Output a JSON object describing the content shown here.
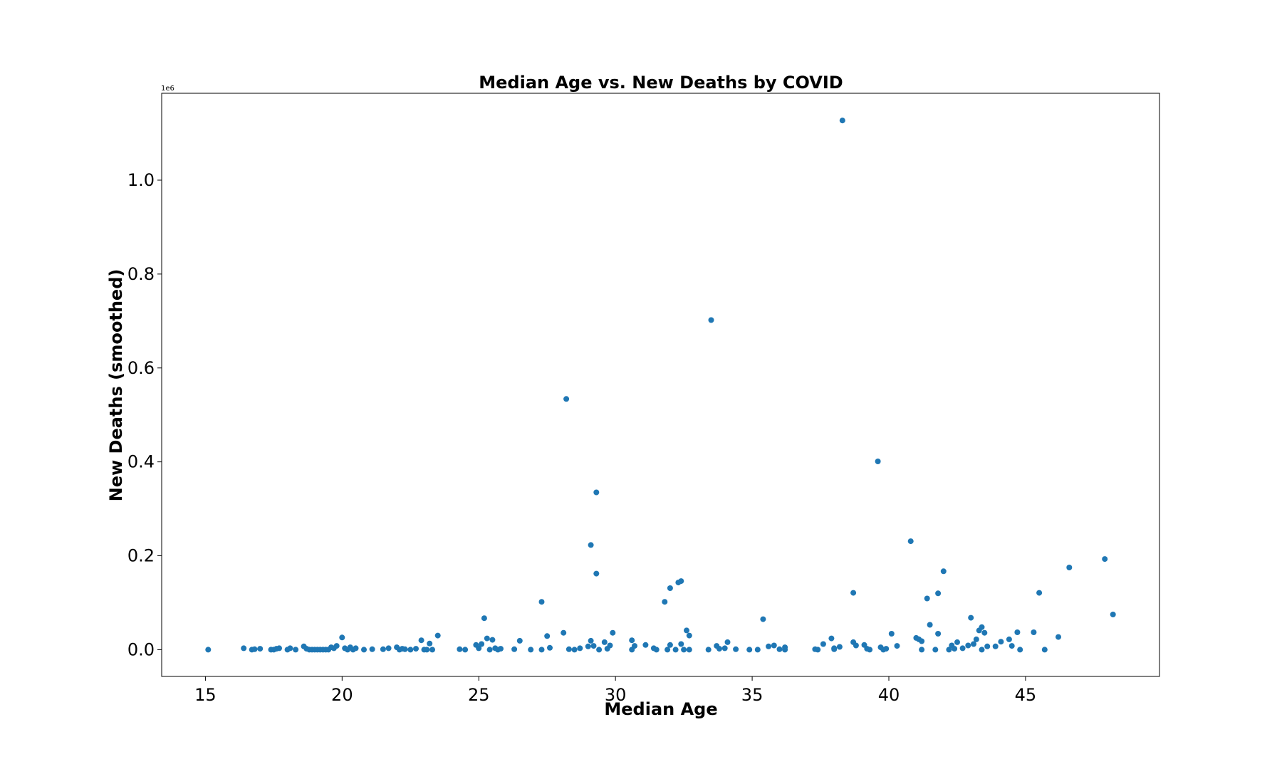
{
  "chart_data": {
    "type": "scatter",
    "title": "Median Age vs. New Deaths by COVID",
    "xlabel": "Median Age",
    "ylabel": "New Deaths (smoothed)",
    "y_offset_label": "1e6",
    "y_multiplier": 1000000,
    "xlim": [
      13.4,
      49.9
    ],
    "ylim": [
      -57000,
      1185000
    ],
    "x_ticks": [
      15,
      20,
      25,
      30,
      35,
      40,
      45
    ],
    "y_ticks": [
      0.0,
      0.2,
      0.4,
      0.6,
      0.8,
      1.0
    ],
    "x_tick_labels": [
      "15",
      "20",
      "25",
      "30",
      "35",
      "40",
      "45"
    ],
    "y_tick_labels": [
      "0.0",
      "0.2",
      "0.4",
      "0.6",
      "0.8",
      "1.0"
    ],
    "grid": false,
    "marker_color": "#1f77b4",
    "points": [
      [
        15.1,
        0
      ],
      [
        16.4,
        3000
      ],
      [
        16.7,
        0
      ],
      [
        16.8,
        1000
      ],
      [
        17.0,
        2000
      ],
      [
        17.4,
        0
      ],
      [
        17.5,
        0
      ],
      [
        17.6,
        2000
      ],
      [
        17.7,
        3000
      ],
      [
        18.0,
        0
      ],
      [
        18.1,
        3000
      ],
      [
        18.3,
        0
      ],
      [
        18.6,
        7000
      ],
      [
        18.7,
        2000
      ],
      [
        18.8,
        0
      ],
      [
        18.9,
        0
      ],
      [
        19.0,
        0
      ],
      [
        19.1,
        0
      ],
      [
        19.2,
        0
      ],
      [
        19.3,
        0
      ],
      [
        19.4,
        0
      ],
      [
        19.5,
        0
      ],
      [
        19.6,
        5000
      ],
      [
        19.7,
        3000
      ],
      [
        19.8,
        8000
      ],
      [
        20.0,
        26000
      ],
      [
        20.1,
        3000
      ],
      [
        20.2,
        0
      ],
      [
        20.3,
        5000
      ],
      [
        20.4,
        0
      ],
      [
        20.5,
        3000
      ],
      [
        20.8,
        0
      ],
      [
        21.1,
        1000
      ],
      [
        21.5,
        1000
      ],
      [
        21.7,
        3000
      ],
      [
        22.0,
        5000
      ],
      [
        22.1,
        0
      ],
      [
        22.2,
        2000
      ],
      [
        22.3,
        1000
      ],
      [
        22.5,
        0
      ],
      [
        22.7,
        2000
      ],
      [
        22.9,
        20000
      ],
      [
        23.0,
        0
      ],
      [
        23.1,
        0
      ],
      [
        23.2,
        13000
      ],
      [
        23.3,
        0
      ],
      [
        23.5,
        30000
      ],
      [
        24.3,
        1000
      ],
      [
        24.5,
        0
      ],
      [
        24.9,
        10000
      ],
      [
        25.0,
        3000
      ],
      [
        25.1,
        12000
      ],
      [
        25.2,
        67000
      ],
      [
        25.3,
        24000
      ],
      [
        25.4,
        0
      ],
      [
        25.5,
        21000
      ],
      [
        25.6,
        3000
      ],
      [
        25.7,
        0
      ],
      [
        25.8,
        2000
      ],
      [
        26.3,
        1000
      ],
      [
        26.5,
        19000
      ],
      [
        26.9,
        0
      ],
      [
        27.3,
        102000
      ],
      [
        27.3,
        0
      ],
      [
        27.5,
        29000
      ],
      [
        27.6,
        4000
      ],
      [
        28.1,
        36000
      ],
      [
        28.2,
        534000
      ],
      [
        28.3,
        1000
      ],
      [
        28.5,
        0
      ],
      [
        28.7,
        3000
      ],
      [
        29.0,
        7000
      ],
      [
        29.1,
        223000
      ],
      [
        29.1,
        19000
      ],
      [
        29.2,
        8000
      ],
      [
        29.3,
        335000
      ],
      [
        29.3,
        162000
      ],
      [
        29.4,
        0
      ],
      [
        29.6,
        16000
      ],
      [
        29.7,
        2000
      ],
      [
        29.8,
        9000
      ],
      [
        29.9,
        36000
      ],
      [
        30.6,
        20000
      ],
      [
        30.6,
        0
      ],
      [
        30.7,
        8000
      ],
      [
        31.1,
        10000
      ],
      [
        31.4,
        3000
      ],
      [
        31.5,
        0
      ],
      [
        31.8,
        102000
      ],
      [
        31.9,
        0
      ],
      [
        32.0,
        131000
      ],
      [
        32.0,
        10000
      ],
      [
        32.2,
        0
      ],
      [
        32.3,
        143000
      ],
      [
        32.4,
        146000
      ],
      [
        32.4,
        12000
      ],
      [
        32.5,
        0
      ],
      [
        32.6,
        41000
      ],
      [
        32.7,
        30000
      ],
      [
        32.7,
        0
      ],
      [
        33.4,
        0
      ],
      [
        33.5,
        702000
      ],
      [
        33.7,
        8000
      ],
      [
        33.8,
        2000
      ],
      [
        34.0,
        3000
      ],
      [
        34.1,
        16000
      ],
      [
        34.4,
        1000
      ],
      [
        34.9,
        0
      ],
      [
        35.2,
        0
      ],
      [
        35.4,
        65000
      ],
      [
        35.6,
        7000
      ],
      [
        35.8,
        9000
      ],
      [
        36.0,
        1000
      ],
      [
        36.2,
        5000
      ],
      [
        36.2,
        0
      ],
      [
        37.3,
        1000
      ],
      [
        37.4,
        0
      ],
      [
        37.6,
        12000
      ],
      [
        37.9,
        24000
      ],
      [
        38.0,
        3000
      ],
      [
        38.0,
        1000
      ],
      [
        38.2,
        6000
      ],
      [
        38.3,
        1127000
      ],
      [
        38.7,
        121000
      ],
      [
        38.7,
        16000
      ],
      [
        38.8,
        9000
      ],
      [
        39.1,
        10000
      ],
      [
        39.2,
        2000
      ],
      [
        39.3,
        0
      ],
      [
        39.6,
        401000
      ],
      [
        39.7,
        5000
      ],
      [
        39.8,
        0
      ],
      [
        39.9,
        2000
      ],
      [
        40.1,
        34000
      ],
      [
        40.3,
        8000
      ],
      [
        40.8,
        231000
      ],
      [
        41.0,
        25000
      ],
      [
        41.1,
        22000
      ],
      [
        41.2,
        0
      ],
      [
        41.2,
        18000
      ],
      [
        41.4,
        109000
      ],
      [
        41.5,
        53000
      ],
      [
        41.7,
        0
      ],
      [
        41.8,
        34000
      ],
      [
        41.8,
        120000
      ],
      [
        42.0,
        167000
      ],
      [
        42.2,
        0
      ],
      [
        42.3,
        9000
      ],
      [
        42.4,
        2000
      ],
      [
        42.5,
        16000
      ],
      [
        42.7,
        3000
      ],
      [
        42.9,
        9000
      ],
      [
        43.0,
        68000
      ],
      [
        43.1,
        12000
      ],
      [
        43.2,
        22000
      ],
      [
        43.3,
        41000
      ],
      [
        43.4,
        48000
      ],
      [
        43.4,
        0
      ],
      [
        43.5,
        36000
      ],
      [
        43.6,
        7000
      ],
      [
        43.9,
        7000
      ],
      [
        44.1,
        17000
      ],
      [
        44.4,
        22000
      ],
      [
        44.5,
        8000
      ],
      [
        44.7,
        37000
      ],
      [
        44.8,
        0
      ],
      [
        45.3,
        37000
      ],
      [
        45.5,
        121000
      ],
      [
        45.7,
        0
      ],
      [
        46.2,
        27000
      ],
      [
        46.6,
        175000
      ],
      [
        47.9,
        193000
      ],
      [
        48.2,
        75000
      ]
    ]
  }
}
